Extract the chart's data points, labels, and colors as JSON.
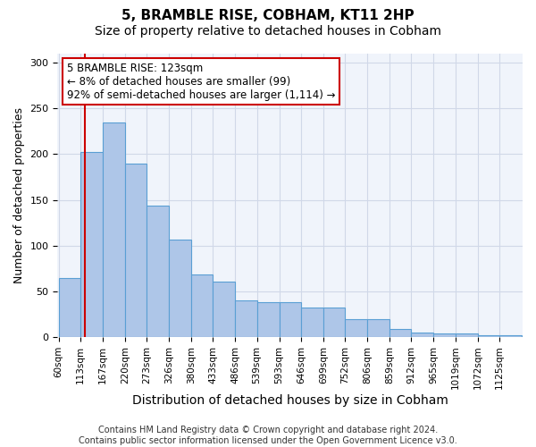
{
  "title": "5, BRAMBLE RISE, COBHAM, KT11 2HP",
  "subtitle": "Size of property relative to detached houses in Cobham",
  "xlabel": "Distribution of detached houses by size in Cobham",
  "ylabel": "Number of detached properties",
  "footer_line1": "Contains HM Land Registry data © Crown copyright and database right 2024.",
  "footer_line2": "Contains public sector information licensed under the Open Government Licence v3.0.",
  "annotation_line1": "5 BRAMBLE RISE: 123sqm",
  "annotation_line2": "← 8% of detached houses are smaller (99)",
  "annotation_line3": "92% of semi-detached houses are larger (1,114) →",
  "property_size": 123,
  "bar_left_edges": [
    60,
    113,
    167,
    220,
    273,
    326,
    380,
    433,
    486,
    539,
    593,
    646,
    699,
    752,
    806,
    859,
    912,
    965,
    1019,
    1072,
    1125
  ],
  "bar_labels": [
    "60sqm",
    "113sqm",
    "167sqm",
    "220sqm",
    "273sqm",
    "326sqm",
    "380sqm",
    "433sqm",
    "486sqm",
    "539sqm",
    "593sqm",
    "646sqm",
    "699sqm",
    "752sqm",
    "806sqm",
    "859sqm",
    "912sqm",
    "965sqm",
    "1019sqm",
    "1072sqm",
    "1125sqm"
  ],
  "bar_heights": [
    65,
    202,
    235,
    190,
    144,
    107,
    68,
    61,
    40,
    38,
    38,
    32,
    32,
    20,
    20,
    9,
    5,
    4,
    4,
    2,
    2
  ],
  "bar_color": "#aec6e8",
  "bar_edge_color": "#5a9fd4",
  "red_line_color": "#cc0000",
  "annotation_box_color": "#cc0000",
  "grid_color": "#d0d8e8",
  "bg_color": "#f0f4fb",
  "ylim": [
    0,
    310
  ],
  "yticks": [
    0,
    50,
    100,
    150,
    200,
    250,
    300
  ],
  "title_fontsize": 11,
  "subtitle_fontsize": 10,
  "xlabel_fontsize": 10,
  "ylabel_fontsize": 9,
  "tick_fontsize": 7.5,
  "annotation_fontsize": 8.5,
  "footer_fontsize": 7
}
